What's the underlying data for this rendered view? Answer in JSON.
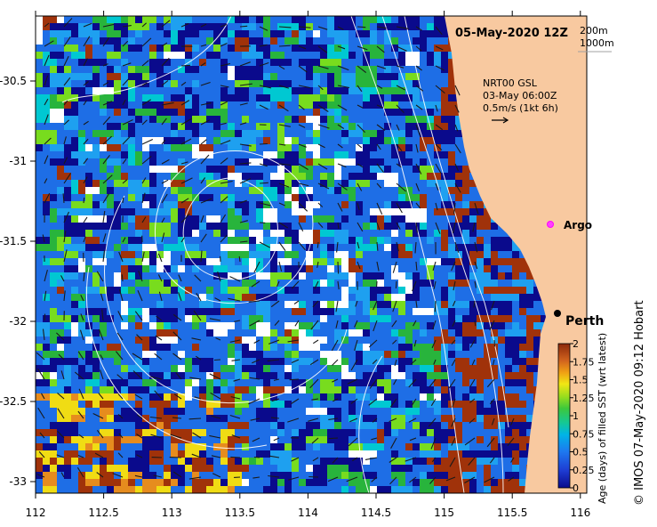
{
  "map": {
    "title": "05-May-2020 12Z",
    "depth_contours": [
      "200m",
      "1000m"
    ],
    "current_source": "NRT00 GSL",
    "current_time": "03-May 06:00Z",
    "current_scale": "0.5m/s (1kt 6h)",
    "x_ticks": [
      "112",
      "112.5",
      "113",
      "113.5",
      "114",
      "114.5",
      "115",
      "115.5",
      "116"
    ],
    "y_ticks": [
      "-30.5",
      "-31",
      "-31.5",
      "-32",
      "-32.5",
      "-33"
    ],
    "places": [
      {
        "name": "Argo",
        "lon": 115.78,
        "lat": -31.44,
        "marker": "magenta-circle"
      },
      {
        "name": "Perth",
        "lon": 115.86,
        "lat": -31.95,
        "marker": "black-dot"
      }
    ],
    "colors": {
      "land": "#f8c9a0",
      "deep_blue": "#0a0a8c",
      "mid_blue": "#1e6ee6",
      "light_blue": "#1ea0f0",
      "cyan": "#00c8d2",
      "green": "#28b43c",
      "lime": "#78dc1e",
      "yellow": "#f0dc14",
      "orange": "#e68c1e",
      "brown": "#a0320a",
      "white": "#ffffff"
    }
  },
  "colorbar": {
    "title": "Age (days) of filled SST (wrt latest)",
    "ticks": [
      "0",
      "0.25",
      "0.5",
      "0.75",
      "1",
      "1.25",
      "1.5",
      "1.75",
      "2"
    ]
  },
  "credit": "© IMOS 07-May-2020 09:12 Hobart"
}
